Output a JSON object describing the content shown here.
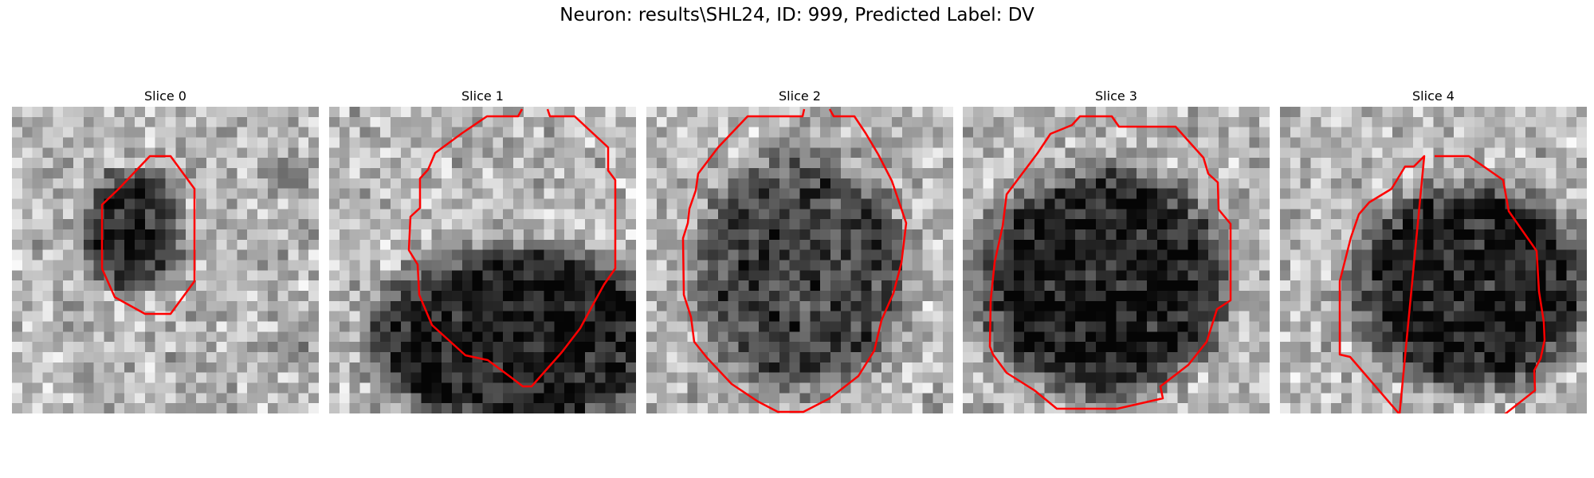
{
  "figure": {
    "title": "Neuron: results\\SHL24, ID: 999, Predicted Label: DV"
  },
  "colors": {
    "contour": "#ff0000",
    "background": "#ffffff"
  },
  "slices": [
    {
      "title": "Slice 0"
    },
    {
      "title": "Slice 1"
    },
    {
      "title": "Slice 2"
    },
    {
      "title": "Slice 3"
    },
    {
      "title": "Slice 4"
    }
  ]
}
